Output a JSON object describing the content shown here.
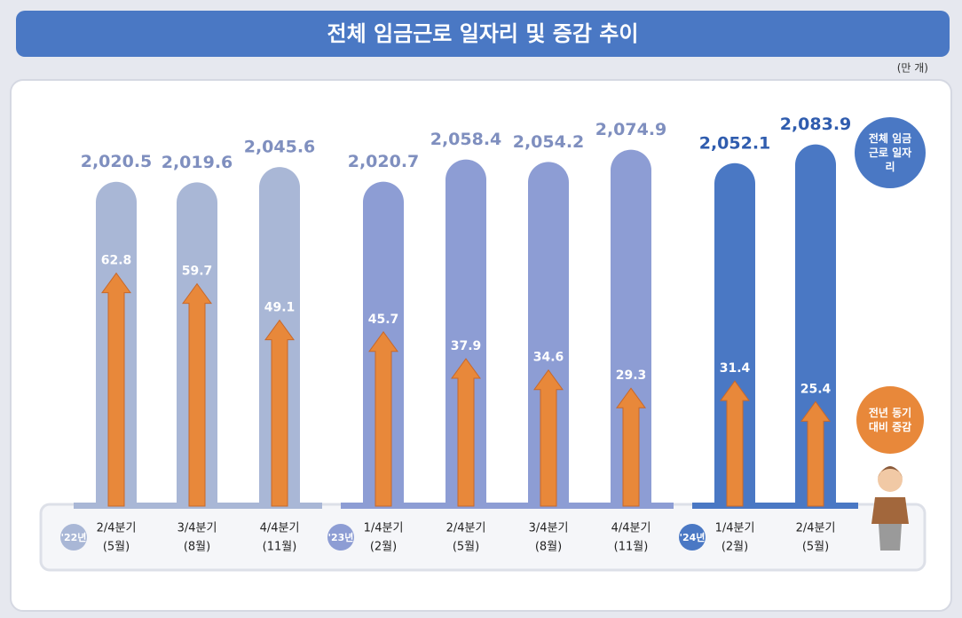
{
  "chart_data": {
    "type": "bar",
    "title": "전체 임금근로 일자리 및 증감 추이",
    "unit": "(만 개)",
    "categories": [
      "2/4분기",
      "3/4분기",
      "4/4분기",
      "1/4분기",
      "2/4분기",
      "3/4분기",
      "4/4분기",
      "1/4분기",
      "2/4분기"
    ],
    "months": [
      "(5월)",
      "(8월)",
      "(11월)",
      "(2월)",
      "(5월)",
      "(8월)",
      "(11월)",
      "(2월)",
      "(5월)"
    ],
    "year_labels": [
      "'22년",
      null,
      null,
      "'23년",
      null,
      null,
      null,
      "'24년",
      null
    ],
    "year_colors": [
      "#a9b7d6",
      null,
      null,
      "#8d9dd4",
      null,
      null,
      null,
      "#4a78c4",
      null
    ],
    "ylim": [
      1470,
      2100
    ],
    "y2lim": [
      -5,
      103
    ],
    "series": [
      {
        "name": "전체 임금근로 일자리",
        "color": "#4a78c4",
        "colors": [
          "#a9b7d6",
          "#a9b7d6",
          "#a9b7d6",
          "#8d9dd4",
          "#8d9dd4",
          "#8d9dd4",
          "#8d9dd4",
          "#4a78c4",
          "#4a78c4"
        ],
        "values": [
          2020.5,
          2019.6,
          2045.6,
          2020.7,
          2058.4,
          2054.2,
          2074.9,
          2052.1,
          2083.9
        ],
        "value_labels": [
          "2,020.5",
          "2,019.6",
          "2,045.6",
          "2,020.7",
          "2,058.4",
          "2,054.2",
          "2,074.9",
          "2,052.1",
          "2,083.9"
        ]
      },
      {
        "name": "전년 동기대비 증감",
        "color": "#e8883a",
        "axis": "y2",
        "values": [
          62.8,
          59.7,
          49.1,
          45.7,
          37.9,
          34.6,
          29.3,
          31.4,
          25.4
        ]
      }
    ]
  }
}
